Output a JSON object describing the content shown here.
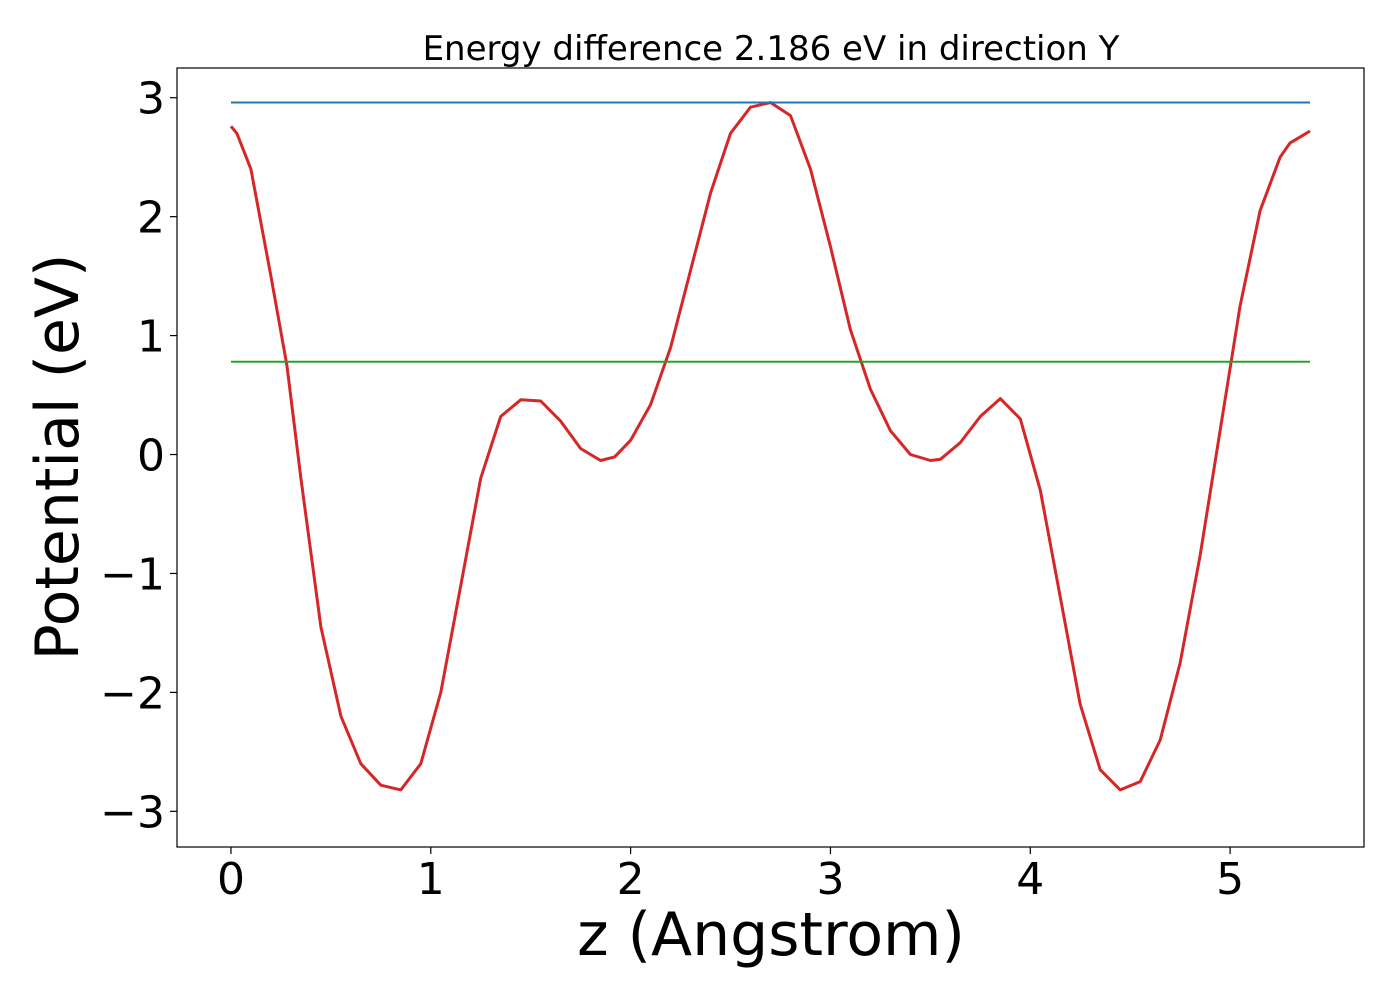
{
  "chart_data": {
    "type": "line",
    "title": "Energy difference 2.186 eV in direction Y",
    "xlabel": "z (Angstrom)",
    "ylabel": "Potential (eV)",
    "xlim": [
      -0.27,
      5.67
    ],
    "ylim": [
      -3.3,
      3.25
    ],
    "xticks": [
      0,
      1,
      2,
      3,
      4,
      5
    ],
    "xtick_labels": [
      "0",
      "1",
      "2",
      "3",
      "4",
      "5"
    ],
    "yticks": [
      -3,
      -2,
      -1,
      0,
      1,
      2,
      3
    ],
    "ytick_labels": [
      "−3",
      "−2",
      "−1",
      "0",
      "1",
      "2",
      "3"
    ],
    "grid": false,
    "series": [
      {
        "color": "#d62728",
        "x": [
          0.0,
          0.03,
          0.1,
          0.2,
          0.28,
          0.35,
          0.45,
          0.55,
          0.65,
          0.75,
          0.85,
          0.95,
          1.05,
          1.15,
          1.25,
          1.35,
          1.45,
          1.55,
          1.65,
          1.75,
          1.85,
          1.92,
          2.0,
          2.1,
          2.2,
          2.3,
          2.4,
          2.5,
          2.6,
          2.7,
          2.8,
          2.9,
          3.0,
          3.1,
          3.2,
          3.3,
          3.4,
          3.5,
          3.55,
          3.65,
          3.75,
          3.85,
          3.95,
          4.05,
          4.15,
          4.25,
          4.35,
          4.45,
          4.55,
          4.65,
          4.75,
          4.85,
          4.95,
          5.05,
          5.15,
          5.25,
          5.3,
          5.36,
          5.4
        ],
        "y": [
          2.76,
          2.7,
          2.4,
          1.5,
          0.75,
          -0.2,
          -1.45,
          -2.2,
          -2.6,
          -2.78,
          -2.82,
          -2.6,
          -2.0,
          -1.1,
          -0.2,
          0.32,
          0.46,
          0.45,
          0.28,
          0.05,
          -0.05,
          -0.02,
          0.12,
          0.42,
          0.9,
          1.55,
          2.2,
          2.7,
          2.92,
          2.96,
          2.85,
          2.4,
          1.75,
          1.05,
          0.55,
          0.2,
          0.0,
          -0.05,
          -0.04,
          0.1,
          0.32,
          0.47,
          0.3,
          -0.3,
          -1.2,
          -2.1,
          -2.65,
          -2.82,
          -2.75,
          -2.4,
          -1.75,
          -0.85,
          0.2,
          1.25,
          2.05,
          2.5,
          2.62,
          2.68,
          2.72
        ]
      },
      {
        "color": "#1f77b4",
        "x": [
          0.0,
          5.4
        ],
        "y": [
          2.96,
          2.96
        ]
      },
      {
        "color": "#2ca02c",
        "x": [
          0.0,
          5.4
        ],
        "y": [
          0.78,
          0.78
        ]
      }
    ]
  }
}
